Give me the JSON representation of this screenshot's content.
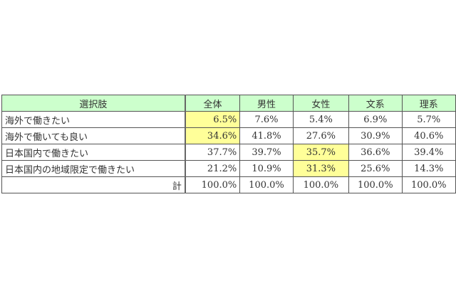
{
  "table": {
    "headers": [
      "選択肢",
      "全体",
      "男性",
      "女性",
      "文系",
      "理系"
    ],
    "rows": [
      {
        "label": "海外で働きたい",
        "values": [
          "6.5%",
          "7.6%",
          "5.4%",
          "6.9%",
          "5.7%"
        ]
      },
      {
        "label": "海外で働いても良い",
        "values": [
          "34.6%",
          "41.8%",
          "27.6%",
          "30.9%",
          "40.6%"
        ]
      },
      {
        "label": "日本国内で働きたい",
        "values": [
          "37.7%",
          "39.7%",
          "35.7%",
          "36.6%",
          "39.4%"
        ]
      },
      {
        "label": "日本国内の地域限定で働きたい",
        "values": [
          "21.2%",
          "10.9%",
          "31.3%",
          "25.6%",
          "14.3%"
        ]
      }
    ],
    "total": {
      "label": "計",
      "values": [
        "100.0%",
        "100.0%",
        "100.0%",
        "100.0%",
        "100.0%"
      ]
    }
  },
  "colors": {
    "header_bg": "#ccffcc",
    "highlight": "#ffff99"
  }
}
